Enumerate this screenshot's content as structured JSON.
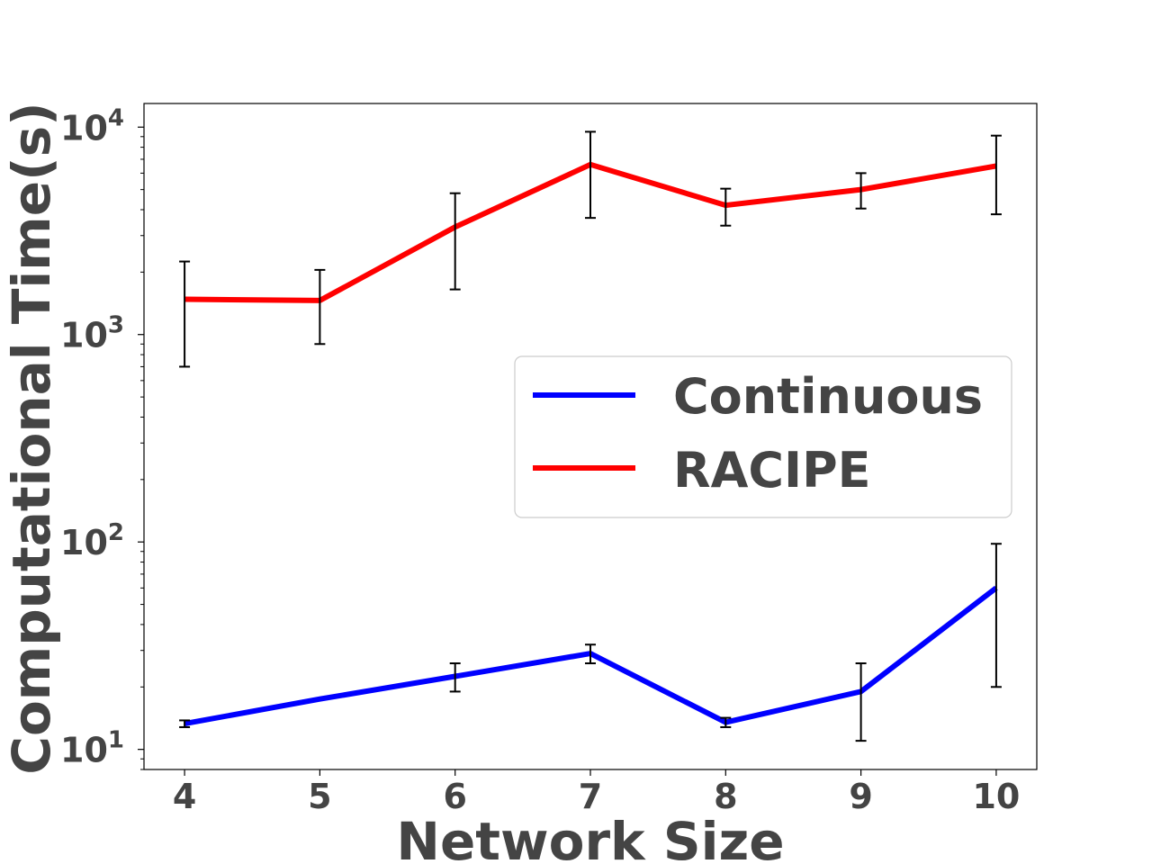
{
  "chart_data": {
    "type": "line",
    "xlabel": "Network Size",
    "ylabel": "Computational Time(s)",
    "x": [
      4,
      5,
      6,
      7,
      8,
      9,
      10
    ],
    "x_tick_labels": [
      "4",
      "5",
      "6",
      "7",
      "8",
      "9",
      "10"
    ],
    "y_scale": "log",
    "ylim": [
      8,
      13000
    ],
    "y_tick_labels": [
      {
        "base": "10",
        "exp": "1",
        "value": 10
      },
      {
        "base": "10",
        "exp": "2",
        "value": 100
      },
      {
        "base": "10",
        "exp": "3",
        "value": 1000
      },
      {
        "base": "10",
        "exp": "4",
        "value": 10000
      }
    ],
    "grid": false,
    "legend_position": "center-right",
    "series": [
      {
        "name": "Continuous",
        "color": "#0000ff",
        "values": [
          13.3,
          17.5,
          22.5,
          29,
          13.5,
          19,
          60
        ],
        "err_low": [
          12.8,
          null,
          19,
          26,
          12.8,
          11,
          20
        ],
        "err_high": [
          13.8,
          null,
          26,
          32,
          14.2,
          26,
          98
        ]
      },
      {
        "name": "RACIPE",
        "color": "#ff0000",
        "values": [
          1480,
          1460,
          3300,
          6600,
          4200,
          5000,
          6500
        ],
        "err_low": [
          700,
          900,
          1650,
          3650,
          3350,
          4050,
          3800
        ],
        "err_high": [
          2250,
          2050,
          4800,
          9500,
          5050,
          6000,
          9100
        ]
      }
    ]
  }
}
